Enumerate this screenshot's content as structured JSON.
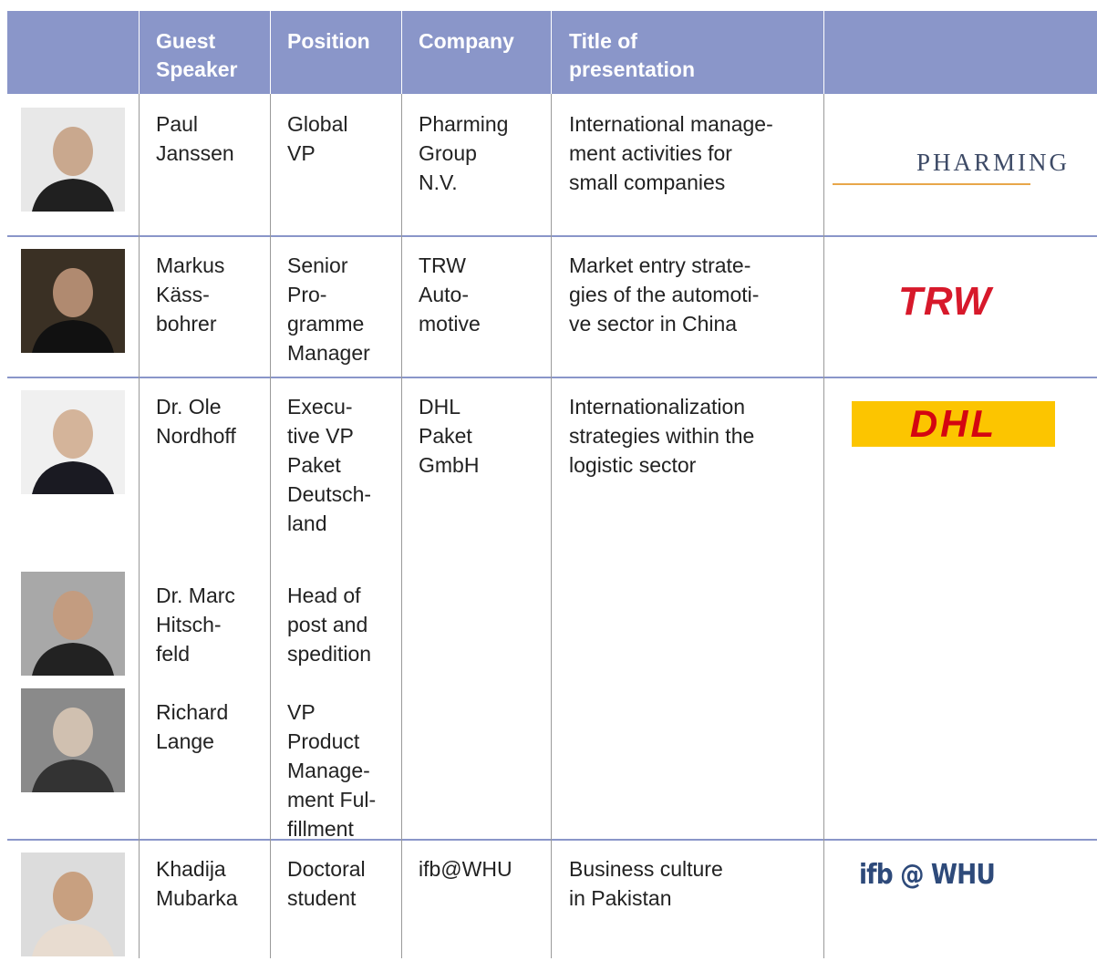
{
  "header": [
    "Guest\nSpeaker",
    "Position",
    "Company",
    "Title of\npresentation"
  ],
  "rows": [
    {
      "speakers": [
        {
          "name": "Paul\nJanssen",
          "position": "Global\nVP"
        }
      ],
      "company": "Pharming\nGroup\nN.V.",
      "title": "International manage-\nment activities for\nsmall companies",
      "logo": "PHARMING"
    },
    {
      "speakers": [
        {
          "name": "Markus\nKäss-\nbohrer",
          "position": "Senior\nPro-\ngramme\nManager"
        }
      ],
      "company": "TRW\nAuto-\nmotive",
      "title": "Market entry strate-\ngies of the automoti-\nve sector in China",
      "logo": "TRW"
    },
    {
      "speakers": [
        {
          "name": "Dr. Ole\nNordhoff",
          "position": "Execu-\ntive VP\nPaket\nDeutsch-\nland"
        },
        {
          "name": "Dr. Marc\nHitsch-\nfeld",
          "position": "Head of\npost and\nspedition"
        },
        {
          "name": "Richard\nLange",
          "position": "VP\nProduct\nManage-\nment Ful-\nfillment"
        }
      ],
      "company": "DHL\nPaket\nGmbH",
      "title": "Internationalization\nstrategies within the\nlogistic sector",
      "logo": "DHL"
    },
    {
      "speakers": [
        {
          "name": "Khadija\nMubarka",
          "position": "Doctoral\nstudent"
        }
      ],
      "company": "ifb@WHU",
      "title": "Business culture\nin Pakistan",
      "logo": "ifb @ WHU"
    }
  ]
}
